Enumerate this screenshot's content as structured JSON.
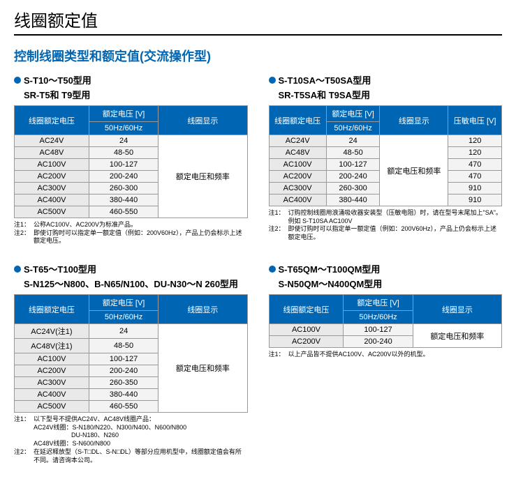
{
  "colors": {
    "accent": "#0066b3",
    "header_bg": "#0066b3",
    "header_fg": "#ffffff",
    "cell_bg": "#f3f3f3",
    "label_bg": "#e9e9e9"
  },
  "page_title": "线圈额定值",
  "section_title": "控制线圈类型和额定值(交流操作型)",
  "headers": {
    "coil_rated_v": "线圈额定电压",
    "rated_v": "额定电压 [V]",
    "freq": "50Hz/60Hz",
    "coil_display": "线圈显示",
    "varistor_v": "压敏电压 [V]"
  },
  "display_text": "额定电压和频率",
  "table1": {
    "title": "S-T10～T50型用",
    "subtitle": "SR-T5和 T9型用",
    "rows": [
      {
        "v": "AC24V",
        "range": "24"
      },
      {
        "v": "AC48V",
        "range": "48-50"
      },
      {
        "v": "AC100V",
        "range": "100-127"
      },
      {
        "v": "AC200V",
        "range": "200-240"
      },
      {
        "v": "AC300V",
        "range": "260-300"
      },
      {
        "v": "AC400V",
        "range": "380-440"
      },
      {
        "v": "AC500V",
        "range": "460-550"
      }
    ],
    "notes": [
      {
        "key": "注1：",
        "text": "公称AC100V、AC200V为标准产品。"
      },
      {
        "key": "注2：",
        "text": "即使订购时可以指定单一额定值（例如：200V60Hz），产品上仍会标示上述额定电压。"
      }
    ]
  },
  "table2": {
    "title": "S-T10SA～T50SA型用",
    "subtitle": "SR-T5SA和 T9SA型用",
    "rows": [
      {
        "v": "AC24V",
        "range": "24",
        "var": "120"
      },
      {
        "v": "AC48V",
        "range": "48-50",
        "var": "120"
      },
      {
        "v": "AC100V",
        "range": "100-127",
        "var": "470"
      },
      {
        "v": "AC200V",
        "range": "200-240",
        "var": "470"
      },
      {
        "v": "AC300V",
        "range": "260-300",
        "var": "910"
      },
      {
        "v": "AC400V",
        "range": "380-440",
        "var": "910"
      }
    ],
    "notes": [
      {
        "key": "注1：",
        "text": "订购控制线圈用浪涌吸收器安装型（压敏电阻）时，请在型号末尾加上\"SA\"。"
      },
      {
        "key": "",
        "text": "例如  S-T10SA AC100V"
      },
      {
        "key": "注2：",
        "text": "即使订购时可以指定单一额定值（例如：200V60Hz），产品上仍会标示上述额定电压。"
      }
    ]
  },
  "table3": {
    "title": "S-T65～T100型用",
    "subtitle": "S-N125～N800、B-N65/N100、DU-N30～N 260型用",
    "rows": [
      {
        "v": "AC24V(注1)",
        "range": "24"
      },
      {
        "v": "AC48V(注1)",
        "range": "48-50"
      },
      {
        "v": "AC100V",
        "range": "100-127"
      },
      {
        "v": "AC200V",
        "range": "200-240"
      },
      {
        "v": "AC300V",
        "range": "260-350"
      },
      {
        "v": "AC400V",
        "range": "380-440"
      },
      {
        "v": "AC500V",
        "range": "460-550"
      }
    ],
    "notes": [
      {
        "key": "注1：",
        "text": "以下型号不提供AC24V、AC48V线圈产品："
      },
      {
        "key": "",
        "text": "AC24V线圈：S-N180/N220、N300/N400、N600/N800"
      },
      {
        "key": "",
        "text": "　　　　　　DU-N180、N260"
      },
      {
        "key": "",
        "text": "AC48V线圈：S-N600/N800"
      },
      {
        "key": "注2：",
        "text": "在延迟释放型（S-T□DL、S-N□DL）等部分应用机型中，线圈额定值会有所不同。请咨询本公司。"
      }
    ]
  },
  "table4": {
    "title": "S-T65QM～T100QM型用",
    "subtitle": "S-N50QM～N400QM型用",
    "rows": [
      {
        "v": "AC100V",
        "range": "100-127"
      },
      {
        "v": "AC200V",
        "range": "200-240"
      }
    ],
    "notes": [
      {
        "key": "注1：",
        "text": "以上产品皆不提供AC100V、AC200V以外的机型。"
      }
    ]
  }
}
